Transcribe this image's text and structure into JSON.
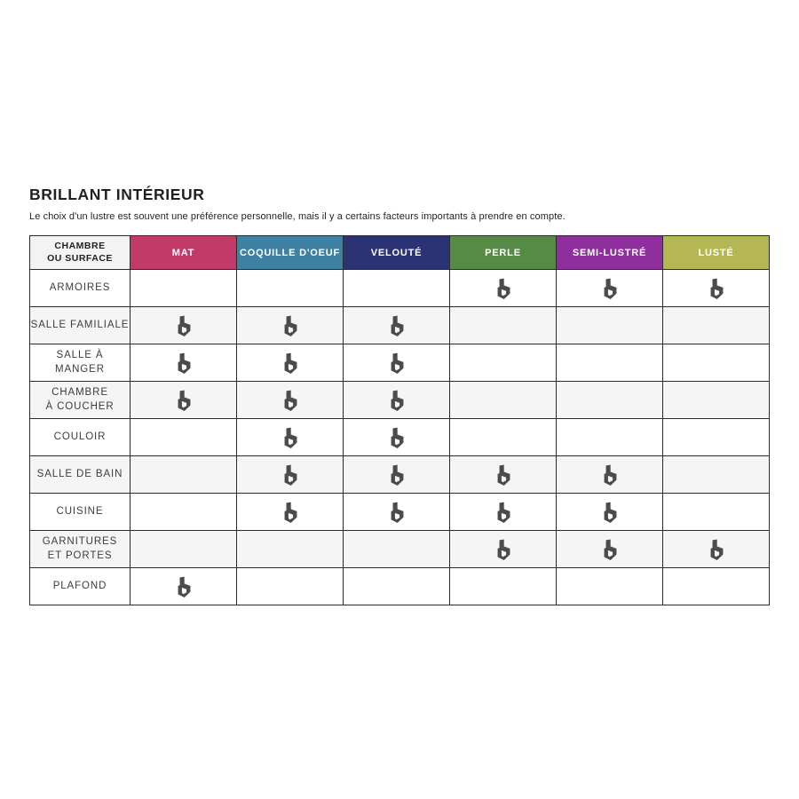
{
  "page": {
    "title": "BRILLANT INTÉRIEUR",
    "subtitle": "Le choix d'un lustre est souvent une préférence personnelle, mais il y a certains facteurs importants à prendre en compte."
  },
  "chart_data": {
    "type": "table",
    "title": "BRILLANT INTÉRIEUR",
    "corner_header": "CHAMBRE\nOU SURFACE",
    "columns": [
      {
        "label": "MAT",
        "color": "#C23A68"
      },
      {
        "label": "COQUILLE D'OEUF",
        "color": "#3E81A3"
      },
      {
        "label": "VELOUTÉ",
        "color": "#2B3374"
      },
      {
        "label": "PERLE",
        "color": "#568B46"
      },
      {
        "label": "SEMI-LUSTRÉ",
        "color": "#8E2F9D"
      },
      {
        "label": "LUSTÉ",
        "color": "#B5B754"
      }
    ],
    "rows": [
      {
        "label": "ARMOIRES",
        "marks": [
          false,
          false,
          false,
          true,
          true,
          true
        ]
      },
      {
        "label": "SALLE FAMILIALE",
        "marks": [
          true,
          true,
          true,
          false,
          false,
          false
        ]
      },
      {
        "label": "SALLE À MANGER",
        "marks": [
          true,
          true,
          true,
          false,
          false,
          false
        ]
      },
      {
        "label": "CHAMBRE\nÀ COUCHER",
        "marks": [
          true,
          true,
          true,
          false,
          false,
          false
        ]
      },
      {
        "label": "COULOIR",
        "marks": [
          false,
          true,
          true,
          false,
          false,
          false
        ]
      },
      {
        "label": "SALLE DE BAIN",
        "marks": [
          false,
          true,
          true,
          true,
          true,
          false
        ]
      },
      {
        "label": "CUISINE",
        "marks": [
          false,
          true,
          true,
          true,
          true,
          false
        ]
      },
      {
        "label": "GARNITURES\nET PORTES",
        "marks": [
          false,
          false,
          false,
          true,
          true,
          true
        ]
      },
      {
        "label": "PLAFOND",
        "marks": [
          true,
          false,
          false,
          false,
          false,
          false
        ]
      }
    ],
    "mark_icon": "brand-b-icon",
    "mark_color": "#4A4B4D",
    "styles": {
      "border_color": "#2B2B2C",
      "alt_row_color": "#F5F5F6",
      "corner_header_bg": "#F3F3F3",
      "header_text_color": "#FFFFFF",
      "title_color": "#231F20"
    },
    "legend_position": "none",
    "grid": true
  }
}
